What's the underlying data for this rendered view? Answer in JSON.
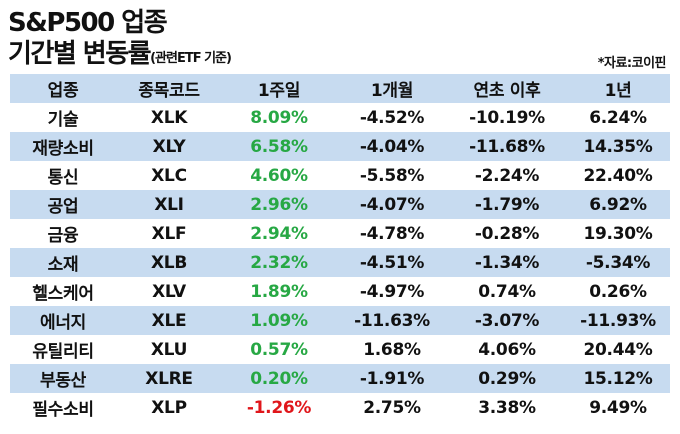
{
  "title": {
    "line1": "S&P500 업종",
    "line2": "기간별 변동률",
    "line2_note": "(관련ETF 기준)"
  },
  "source": "*자료:코이핀",
  "chart_data": {
    "type": "table",
    "columns": [
      "업종",
      "종목코드",
      "1주일",
      "1개월",
      "연초 이후",
      "1년"
    ],
    "rows": [
      [
        "기술",
        "XLK",
        "8.09%",
        "-4.52%",
        "-10.19%",
        "6.24%"
      ],
      [
        "재량소비",
        "XLY",
        "6.58%",
        "-4.04%",
        "-11.68%",
        "14.35%"
      ],
      [
        "통신",
        "XLC",
        "4.60%",
        "-5.58%",
        "-2.24%",
        "22.40%"
      ],
      [
        "공업",
        "XLI",
        "2.96%",
        "-4.07%",
        "-1.79%",
        "6.92%"
      ],
      [
        "금융",
        "XLF",
        "2.94%",
        "-4.78%",
        "-0.28%",
        "19.30%"
      ],
      [
        "소재",
        "XLB",
        "2.32%",
        "-4.51%",
        "-1.34%",
        "-5.34%"
      ],
      [
        "헬스케어",
        "XLV",
        "1.89%",
        "-4.97%",
        "0.74%",
        "0.26%"
      ],
      [
        "에너지",
        "XLE",
        "1.09%",
        "-11.63%",
        "-3.07%",
        "-11.93%"
      ],
      [
        "유틸리티",
        "XLU",
        "0.57%",
        "1.68%",
        "4.06%",
        "20.44%"
      ],
      [
        "부동산",
        "XLRE",
        "0.20%",
        "-1.91%",
        "0.29%",
        "15.12%"
      ],
      [
        "필수소비",
        "XLP",
        "-1.26%",
        "2.75%",
        "3.38%",
        "9.49%"
      ]
    ],
    "colors": {
      "header_band": "#c7dbf0",
      "positive_week": "#27a844",
      "negative_week": "#e0161b"
    }
  }
}
